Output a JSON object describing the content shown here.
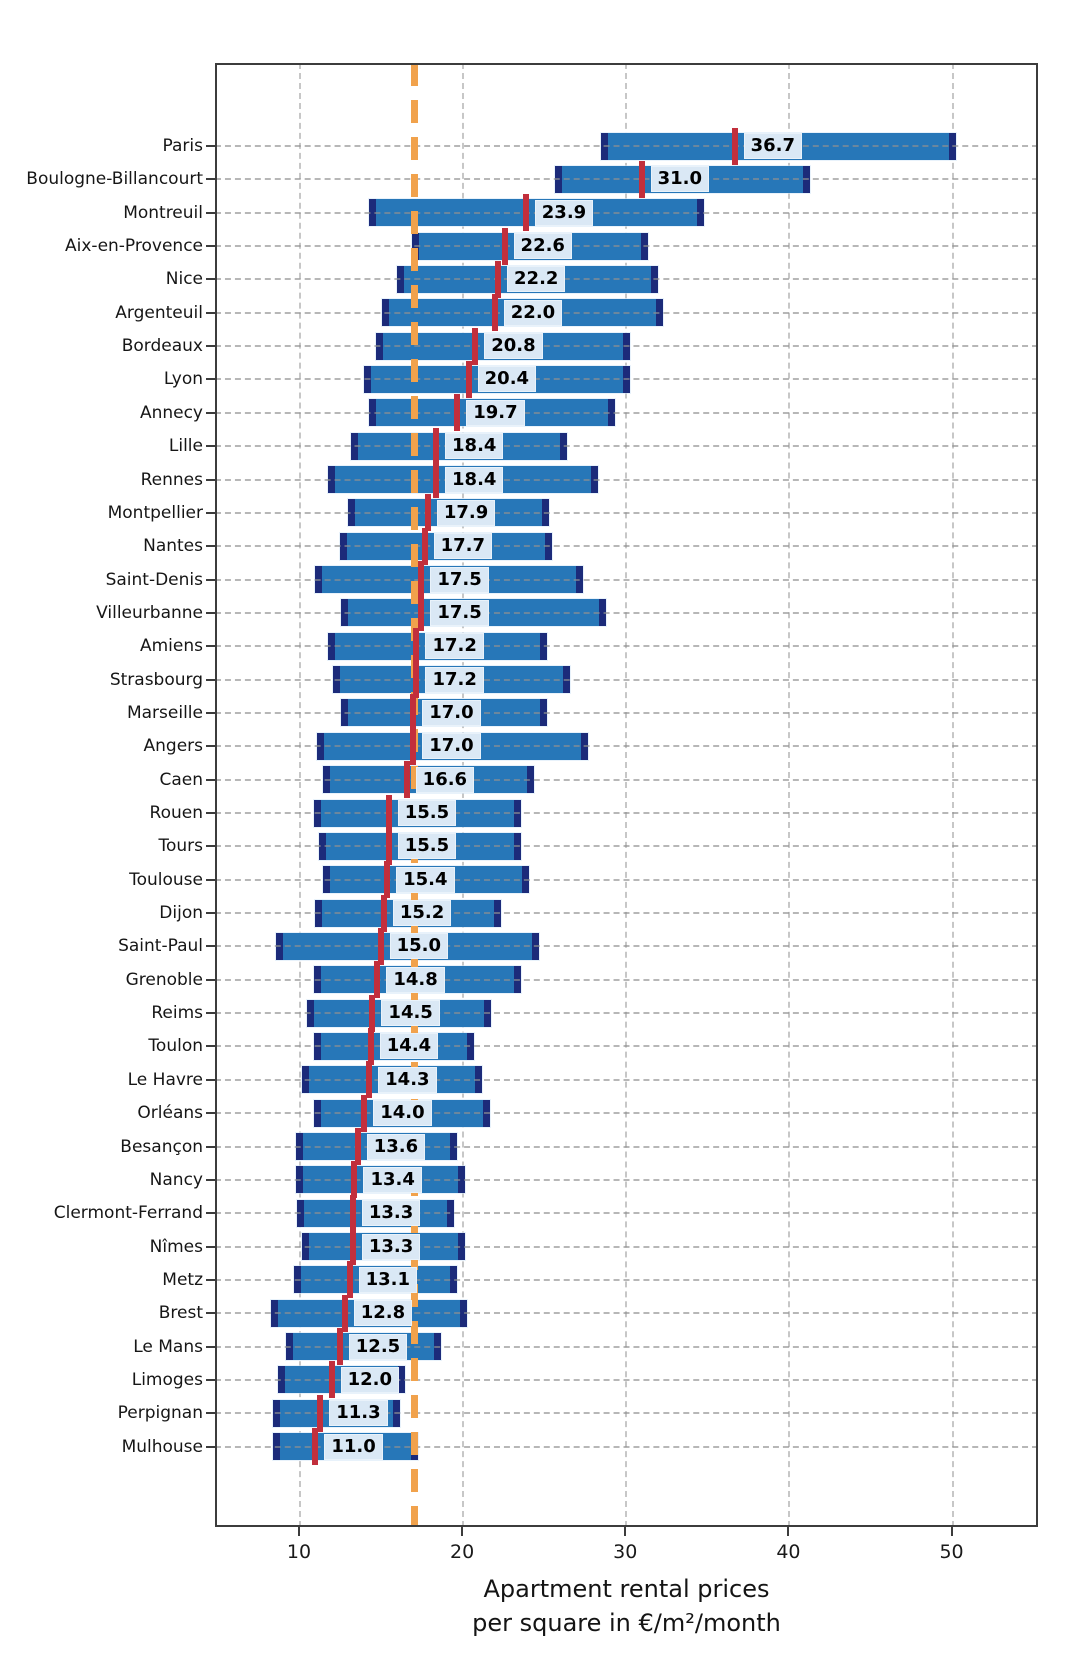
{
  "chart_data": {
    "type": "bar",
    "subtype": "range-bars-with-median-marker",
    "title": "Apartment rental prices per square in €/m²/month",
    "title_line1": "Apartment rental prices",
    "title_line2": "per square in €/m²/month",
    "xlabel": "Apartment rental prices per square in €/m²/month",
    "ylabel": "",
    "xlim": [
      4.85,
      55.3
    ],
    "xticks": [
      10,
      20,
      30,
      40,
      50
    ],
    "grid": true,
    "legend": "none",
    "reference_line": {
      "value": 17.1,
      "orientation": "vertical",
      "style": "dashed",
      "color": "#f1a24c"
    },
    "categories": [
      "Paris",
      "Boulogne-Billancourt",
      "Montreuil",
      "Aix-en-Provence",
      "Nice",
      "Argenteuil",
      "Bordeaux",
      "Lyon",
      "Annecy",
      "Lille",
      "Rennes",
      "Montpellier",
      "Nantes",
      "Saint-Denis",
      "Villeurbanne",
      "Amiens",
      "Strasbourg",
      "Marseille",
      "Angers",
      "Caen",
      "Rouen",
      "Tours",
      "Toulouse",
      "Dijon",
      "Saint-Paul",
      "Grenoble",
      "Reims",
      "Toulon",
      "Le Havre",
      "Orléans",
      "Besançon",
      "Nancy",
      "Clermont-Ferrand",
      "Nîmes",
      "Metz",
      "Brest",
      "Le Mans",
      "Limoges",
      "Perpignan",
      "Mulhouse"
    ],
    "series": [
      {
        "name": "median",
        "values": [
          36.7,
          31.0,
          23.9,
          22.6,
          22.2,
          22.0,
          20.8,
          20.4,
          19.7,
          18.4,
          18.4,
          17.9,
          17.7,
          17.5,
          17.5,
          17.2,
          17.2,
          17.0,
          17.0,
          16.6,
          15.5,
          15.5,
          15.4,
          15.2,
          15.0,
          14.8,
          14.5,
          14.4,
          14.3,
          14.0,
          13.6,
          13.4,
          13.3,
          13.3,
          13.1,
          12.8,
          12.5,
          12.0,
          11.3,
          11.0
        ]
      },
      {
        "name": "min",
        "values": [
          28.5,
          25.7,
          14.3,
          16.9,
          16.0,
          15.1,
          14.7,
          14.0,
          14.3,
          13.2,
          11.8,
          13.0,
          12.5,
          11.0,
          12.6,
          11.8,
          12.1,
          12.6,
          11.1,
          11.5,
          10.9,
          11.2,
          11.5,
          11.0,
          8.6,
          10.9,
          10.5,
          10.9,
          10.2,
          10.9,
          9.8,
          9.8,
          9.9,
          10.2,
          9.7,
          8.3,
          9.2,
          8.7,
          8.4,
          8.4
        ]
      },
      {
        "name": "max",
        "values": [
          50.3,
          41.3,
          34.8,
          31.4,
          32.0,
          32.3,
          30.3,
          30.3,
          29.4,
          26.4,
          28.3,
          25.3,
          25.5,
          27.4,
          28.8,
          25.2,
          26.6,
          25.2,
          27.7,
          24.4,
          23.6,
          23.6,
          24.1,
          22.4,
          24.7,
          23.6,
          21.8,
          20.7,
          21.2,
          21.7,
          19.7,
          20.2,
          19.5,
          20.2,
          19.7,
          20.3,
          18.7,
          16.5,
          16.2,
          17.3
        ]
      }
    ],
    "value_label_format": "one-decimal",
    "colors": {
      "bar_fill": "#2777b8",
      "bar_caps": "#1c2b7a",
      "median_tick": "#c22f3c",
      "value_label_bg": "#dae8f5",
      "value_label_text": "#000000",
      "reference_line": "#f1a24c",
      "gridline": "#bdbdbd",
      "frame": "#3c3c3c",
      "background": "#ffffff"
    }
  }
}
